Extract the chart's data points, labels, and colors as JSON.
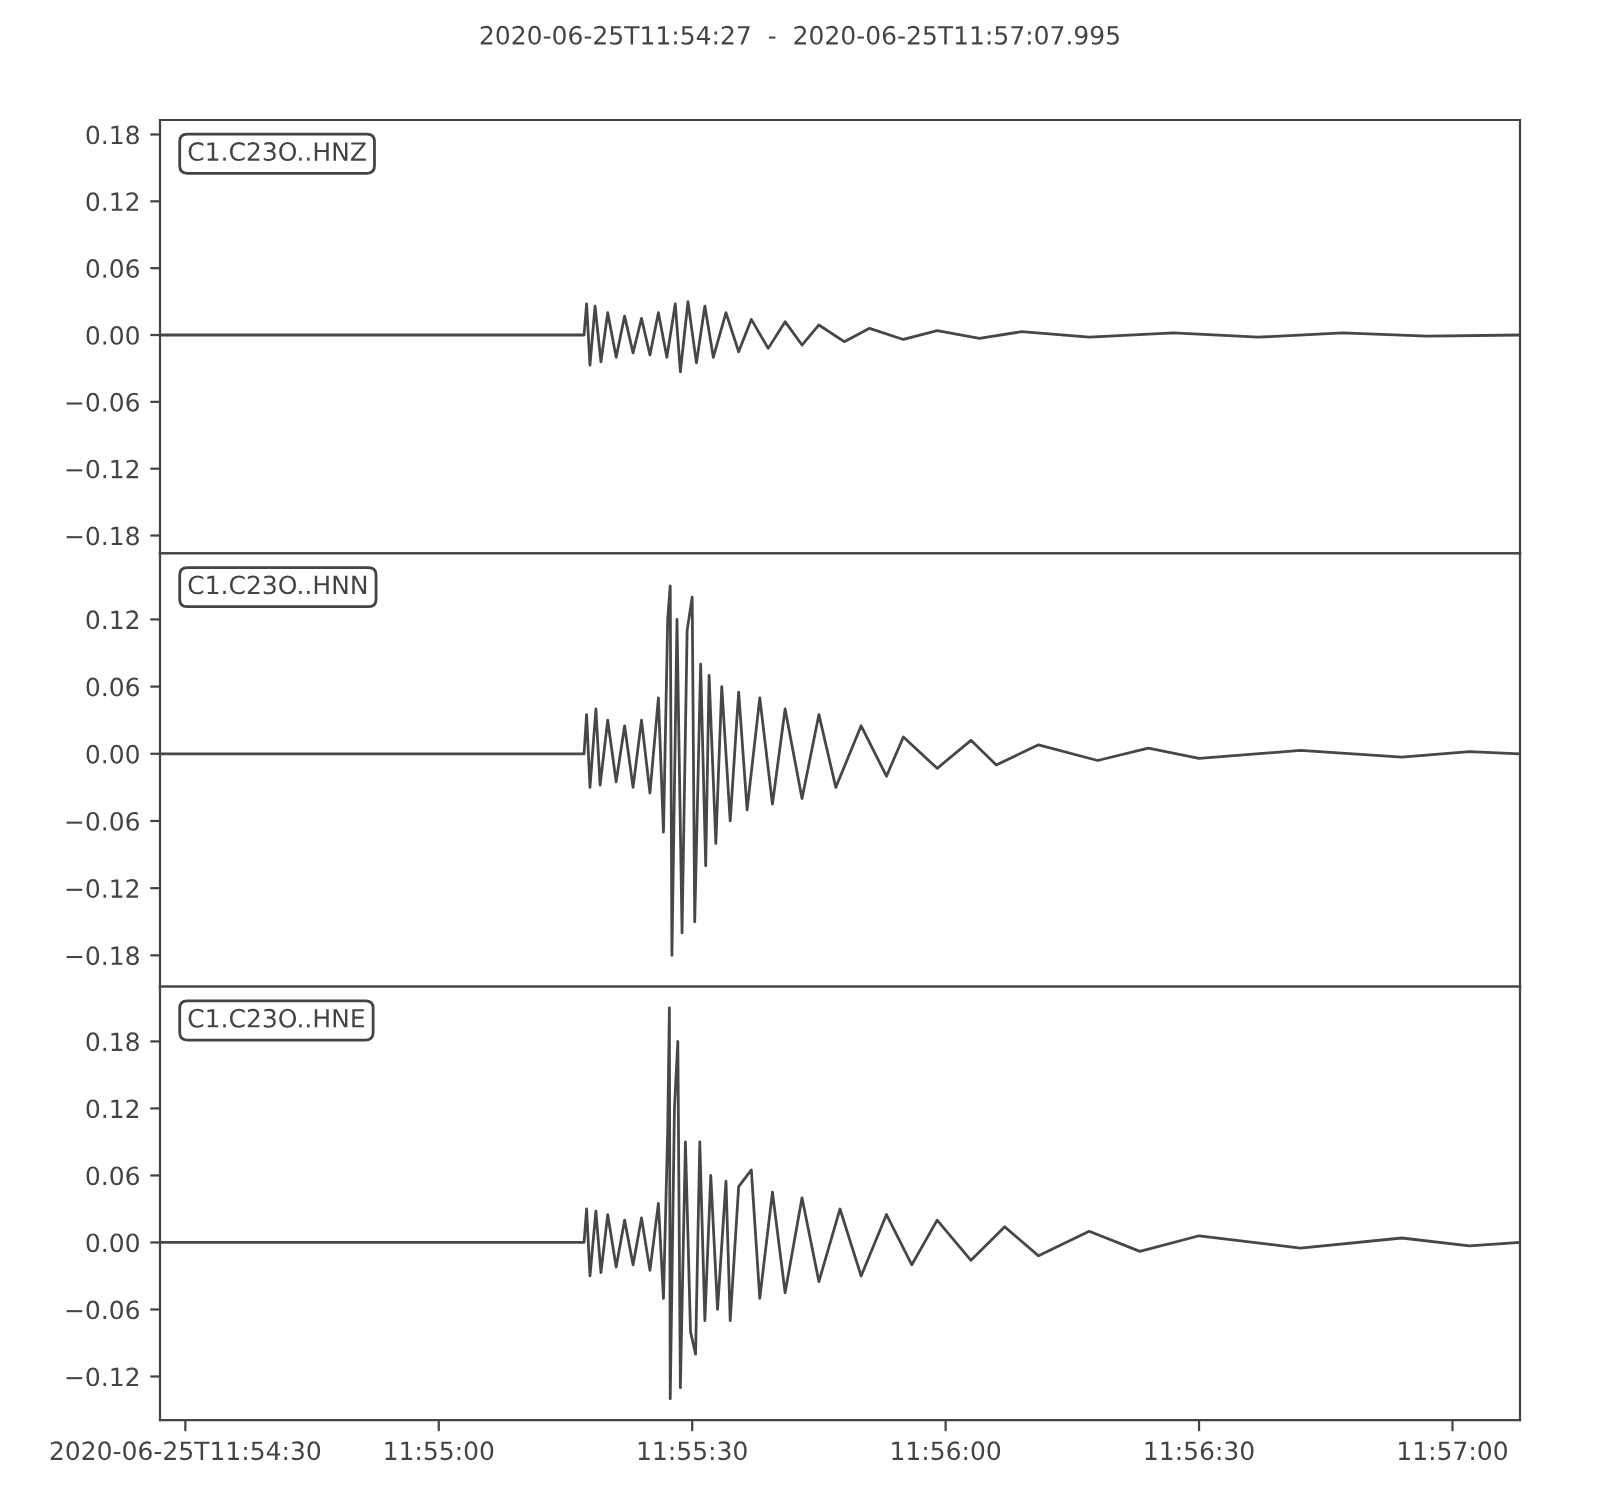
{
  "chart_data": [
    {
      "type": "line",
      "title": "2020-06-25T11:54:27  -  2020-06-25T11:57:07.995",
      "annotations": [
        "C1.C23O..HNZ"
      ],
      "tick_labels": "y",
      "xlim": [
        "2020-06-25T11:54:27",
        "2020-06-25T11:57:07.995"
      ],
      "ylim": [
        -0.196,
        0.193
      ],
      "yticks": [
        {
          "value": -0.18,
          "label": "−0.18"
        },
        {
          "value": -0.12,
          "label": "−0.12"
        },
        {
          "value": -0.06,
          "label": "−0.06"
        },
        {
          "value": 0,
          "label": "0.00"
        },
        {
          "value": 0.06,
          "label": "0.06"
        },
        {
          "value": 0.12,
          "label": "0.12"
        },
        {
          "value": 0.18,
          "label": "0.18"
        }
      ],
      "series": [
        {
          "color": "#474747",
          "x": [
            "2020-06-25T11:54:27",
            "2020-06-25T11:55:16",
            "2020-06-25T11:55:17.2",
            "2020-06-25T11:55:17.5",
            "2020-06-25T11:55:17.9",
            "2020-06-25T11:55:18.5",
            "2020-06-25T11:55:19.2",
            "2020-06-25T11:55:20",
            "2020-06-25T11:55:21",
            "2020-06-25T11:55:22",
            "2020-06-25T11:55:23",
            "2020-06-25T11:55:24",
            "2020-06-25T11:55:25",
            "2020-06-25T11:55:26",
            "2020-06-25T11:55:27",
            "2020-06-25T11:55:28",
            "2020-06-25T11:55:28.6",
            "2020-06-25T11:55:29.5",
            "2020-06-25T11:55:30.5",
            "2020-06-25T11:55:31.5",
            "2020-06-25T11:55:32.5",
            "2020-06-25T11:55:34",
            "2020-06-25T11:55:35.5",
            "2020-06-25T11:55:37",
            "2020-06-25T11:55:39",
            "2020-06-25T11:55:41",
            "2020-06-25T11:55:43",
            "2020-06-25T11:55:45",
            "2020-06-25T11:55:48",
            "2020-06-25T11:55:51",
            "2020-06-25T11:55:55",
            "2020-06-25T11:55:59",
            "2020-06-25T11:56:04",
            "2020-06-25T11:56:09",
            "2020-06-25T11:56:17",
            "2020-06-25T11:56:27",
            "2020-06-25T11:56:37",
            "2020-06-25T11:56:47",
            "2020-06-25T11:56:57",
            "2020-06-25T11:57:07.995"
          ],
          "values": [
            0,
            0,
            0,
            0.028,
            -0.027,
            0.026,
            -0.024,
            0.02,
            -0.02,
            0.017,
            -0.016,
            0.015,
            -0.018,
            0.02,
            -0.02,
            0.028,
            -0.033,
            0.03,
            -0.025,
            0.026,
            -0.02,
            0.02,
            -0.015,
            0.014,
            -0.012,
            0.012,
            -0.009,
            0.009,
            -0.006,
            0.006,
            -0.004,
            0.004,
            -0.003,
            0.003,
            -0.002,
            0.002,
            -0.002,
            0.002,
            -0.001,
            0
          ]
        }
      ]
    },
    {
      "type": "line",
      "annotations": [
        "C1.C23O..HNN"
      ],
      "tick_labels": "y",
      "xlim": [
        "2020-06-25T11:54:27",
        "2020-06-25T11:57:07.995"
      ],
      "ylim": [
        -0.208,
        0.179
      ],
      "yticks": [
        {
          "value": -0.18,
          "label": "−0.18"
        },
        {
          "value": -0.12,
          "label": "−0.12"
        },
        {
          "value": -0.06,
          "label": "−0.06"
        },
        {
          "value": 0,
          "label": "0.00"
        },
        {
          "value": 0.06,
          "label": "0.06"
        },
        {
          "value": 0.12,
          "label": "0.12"
        }
      ],
      "series": [
        {
          "color": "#474747",
          "x": [
            "2020-06-25T11:54:27",
            "2020-06-25T11:55:16",
            "2020-06-25T11:55:17.2",
            "2020-06-25T11:55:17.5",
            "2020-06-25T11:55:17.9",
            "2020-06-25T11:55:18.6",
            "2020-06-25T11:55:19.1",
            "2020-06-25T11:55:20",
            "2020-06-25T11:55:21",
            "2020-06-25T11:55:22",
            "2020-06-25T11:55:23",
            "2020-06-25T11:55:24",
            "2020-06-25T11:55:25",
            "2020-06-25T11:55:26",
            "2020-06-25T11:55:26.6",
            "2020-06-25T11:55:27.1",
            "2020-06-25T11:55:27.4",
            "2020-06-25T11:55:27.6",
            "2020-06-25T11:55:28.2",
            "2020-06-25T11:55:28.8",
            "2020-06-25T11:55:29.4",
            "2020-06-25T11:55:30",
            "2020-06-25T11:55:30.3",
            "2020-06-25T11:55:31",
            "2020-06-25T11:55:31.6",
            "2020-06-25T11:55:32",
            "2020-06-25T11:55:32.8",
            "2020-06-25T11:55:33.5",
            "2020-06-25T11:55:34.5",
            "2020-06-25T11:55:35.5",
            "2020-06-25T11:55:36.5",
            "2020-06-25T11:55:38",
            "2020-06-25T11:55:39.5",
            "2020-06-25T11:55:41",
            "2020-06-25T11:55:43",
            "2020-06-25T11:55:45",
            "2020-06-25T11:55:47",
            "2020-06-25T11:55:50",
            "2020-06-25T11:55:53",
            "2020-06-25T11:55:55",
            "2020-06-25T11:55:59",
            "2020-06-25T11:56:03",
            "2020-06-25T11:56:06",
            "2020-06-25T11:56:11",
            "2020-06-25T11:56:18",
            "2020-06-25T11:56:24",
            "2020-06-25T11:56:30",
            "2020-06-25T11:56:42",
            "2020-06-25T11:56:54",
            "2020-06-25T11:57:02",
            "2020-06-25T11:57:07.995"
          ],
          "values": [
            0,
            0,
            0,
            0.035,
            -0.03,
            0.04,
            -0.028,
            0.03,
            -0.025,
            0.025,
            -0.03,
            0.03,
            -0.035,
            0.05,
            -0.07,
            0.12,
            0.15,
            -0.18,
            0.12,
            -0.16,
            0.11,
            0.14,
            -0.15,
            0.08,
            -0.1,
            0.07,
            -0.08,
            0.06,
            -0.06,
            0.055,
            -0.05,
            0.05,
            -0.045,
            0.04,
            -0.04,
            0.035,
            -0.03,
            0.025,
            -0.02,
            0.015,
            -0.013,
            0.012,
            -0.01,
            0.008,
            -0.006,
            0.005,
            -0.004,
            0.003,
            -0.003,
            0.002,
            0
          ]
        }
      ]
    },
    {
      "type": "line",
      "annotations": [
        "C1.C23O..HNE"
      ],
      "xlim": [
        "2020-06-25T11:54:27",
        "2020-06-25T11:57:07.995"
      ],
      "ylim": [
        -0.159,
        0.229
      ],
      "xticks": [
        {
          "value": "2020-06-25T11:54:30",
          "label": "2020-06-25T11:54:30"
        },
        {
          "value": "2020-06-25T11:55:00",
          "label": "11:55:00"
        },
        {
          "value": "2020-06-25T11:55:30",
          "label": "11:55:30"
        },
        {
          "value": "2020-06-25T11:56:00",
          "label": "11:56:00"
        },
        {
          "value": "2020-06-25T11:56:30",
          "label": "11:56:30"
        },
        {
          "value": "2020-06-25T11:57:00",
          "label": "11:57:00"
        }
      ],
      "yticks": [
        {
          "value": -0.12,
          "label": "−0.12"
        },
        {
          "value": -0.06,
          "label": "−0.06"
        },
        {
          "value": 0,
          "label": "0.00"
        },
        {
          "value": 0.06,
          "label": "0.06"
        },
        {
          "value": 0.12,
          "label": "0.12"
        },
        {
          "value": 0.18,
          "label": "0.18"
        }
      ],
      "series": [
        {
          "color": "#474747",
          "x": [
            "2020-06-25T11:54:27",
            "2020-06-25T11:55:16",
            "2020-06-25T11:55:17.2",
            "2020-06-25T11:55:17.5",
            "2020-06-25T11:55:17.9",
            "2020-06-25T11:55:18.6",
            "2020-06-25T11:55:19.2",
            "2020-06-25T11:55:20",
            "2020-06-25T11:55:21",
            "2020-06-25T11:55:22",
            "2020-06-25T11:55:23",
            "2020-06-25T11:55:24",
            "2020-06-25T11:55:25",
            "2020-06-25T11:55:26",
            "2020-06-25T11:55:26.6",
            "2020-06-25T11:55:27.1",
            "2020-06-25T11:55:27.3",
            "2020-06-25T11:55:27.4",
            "2020-06-25T11:55:27.9",
            "2020-06-25T11:55:28.3",
            "2020-06-25T11:55:28.6",
            "2020-06-25T11:55:29.2",
            "2020-06-25T11:55:29.8",
            "2020-06-25T11:55:30.4",
            "2020-06-25T11:55:30.9",
            "2020-06-25T11:55:31.5",
            "2020-06-25T11:55:32.2",
            "2020-06-25T11:55:33",
            "2020-06-25T11:55:34",
            "2020-06-25T11:55:34.5",
            "2020-06-25T11:55:35.5",
            "2020-06-25T11:55:37",
            "2020-06-25T11:55:38",
            "2020-06-25T11:55:39.5",
            "2020-06-25T11:55:41",
            "2020-06-25T11:55:43",
            "2020-06-25T11:55:45",
            "2020-06-25T11:55:47.5",
            "2020-06-25T11:55:50",
            "2020-06-25T11:55:53",
            "2020-06-25T11:55:56",
            "2020-06-25T11:55:59",
            "2020-06-25T11:56:03",
            "2020-06-25T11:56:07",
            "2020-06-25T11:56:11",
            "2020-06-25T11:56:17",
            "2020-06-25T11:56:23",
            "2020-06-25T11:56:30",
            "2020-06-25T11:56:42",
            "2020-06-25T11:56:54",
            "2020-06-25T11:57:02",
            "2020-06-25T11:57:07.995"
          ],
          "values": [
            0,
            0,
            0,
            0.03,
            -0.03,
            0.028,
            -0.027,
            0.025,
            -0.022,
            0.02,
            -0.02,
            0.022,
            -0.025,
            0.035,
            -0.05,
            0.1,
            0.21,
            -0.14,
            0.12,
            0.18,
            -0.13,
            0.09,
            -0.08,
            -0.1,
            0.09,
            -0.07,
            0.06,
            -0.06,
            0.055,
            -0.07,
            0.05,
            0.065,
            -0.05,
            0.045,
            -0.045,
            0.04,
            -0.035,
            0.03,
            -0.03,
            0.025,
            -0.02,
            0.02,
            -0.016,
            0.014,
            -0.012,
            0.01,
            -0.008,
            0.006,
            -0.005,
            0.004,
            -0.003,
            0
          ]
        }
      ]
    }
  ]
}
